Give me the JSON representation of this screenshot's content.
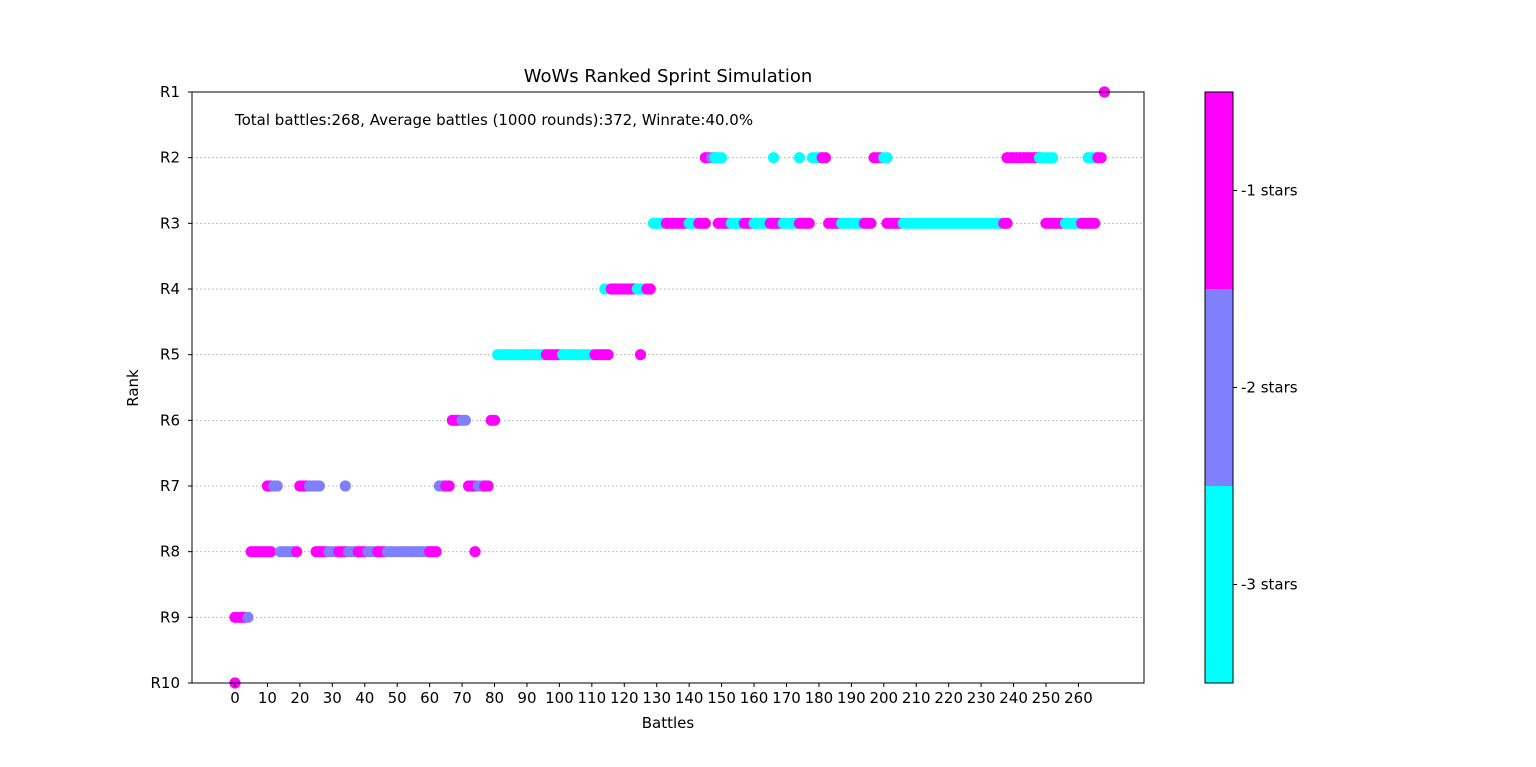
{
  "chart_data": {
    "type": "scatter",
    "title": "WoWs Ranked Sprint Simulation",
    "annotation": "Total battles:268, Average battles (1000 rounds):372, Winrate:40.0%",
    "xlabel": "Battles",
    "ylabel": "Rank",
    "xlim": [
      -13,
      280
    ],
    "x_ticks": [
      0,
      10,
      20,
      30,
      40,
      50,
      60,
      70,
      80,
      90,
      100,
      110,
      120,
      130,
      140,
      150,
      160,
      170,
      180,
      190,
      200,
      210,
      220,
      230,
      240,
      250,
      260
    ],
    "y_ticks": [
      {
        "label": "R1",
        "value": 1,
        "color": "#ff0000"
      },
      {
        "label": "R2",
        "value": 2,
        "color": "#000000"
      },
      {
        "label": "R3",
        "value": 3,
        "color": "#ff0000"
      },
      {
        "label": "R4",
        "value": 4,
        "color": "#000000"
      },
      {
        "label": "R5",
        "value": 5,
        "color": "#ff0000"
      },
      {
        "label": "R6",
        "value": 6,
        "color": "#000000"
      },
      {
        "label": "R7",
        "value": 7,
        "color": "#000000"
      },
      {
        "label": "R8",
        "value": 8,
        "color": "#ff0000"
      },
      {
        "label": "R9",
        "value": 9,
        "color": "#ff0000"
      },
      {
        "label": "R10",
        "value": 10,
        "color": "#ff0000"
      }
    ],
    "ylim": [
      10,
      1
    ],
    "grid": "horizontal dotted",
    "colorbar": {
      "categories": [
        {
          "label": "-3 stars",
          "color": "#00ffff"
        },
        {
          "label": "-2 stars",
          "color": "#8080ff"
        },
        {
          "label": "-1 stars",
          "color": "#ff00ff"
        }
      ]
    },
    "segments": [
      {
        "rank": 10,
        "x": [
          0,
          0
        ],
        "mix": "m"
      },
      {
        "rank": 9,
        "x": [
          0,
          4
        ],
        "mix": "mmp"
      },
      {
        "rank": 8,
        "x": [
          5,
          11
        ],
        "mix": "mm"
      },
      {
        "rank": 8,
        "x": [
          14,
          19
        ],
        "mix": "pppm"
      },
      {
        "rank": 8,
        "x": [
          25,
          34
        ],
        "mix": "mpm"
      },
      {
        "rank": 8,
        "x": [
          35,
          46
        ],
        "mix": "pmpm"
      },
      {
        "rank": 8,
        "x": [
          47,
          60
        ],
        "mix": "pp"
      },
      {
        "rank": 8,
        "x": [
          60,
          62
        ],
        "mix": "m"
      },
      {
        "rank": 8,
        "x": [
          74,
          74
        ],
        "mix": "m"
      },
      {
        "rank": 7,
        "x": [
          10,
          13
        ],
        "mix": "mp"
      },
      {
        "rank": 7,
        "x": [
          20,
          26
        ],
        "mix": "mpp"
      },
      {
        "rank": 7,
        "x": [
          34,
          34
        ],
        "mix": "p"
      },
      {
        "rank": 7,
        "x": [
          63,
          66
        ],
        "mix": "pm"
      },
      {
        "rank": 7,
        "x": [
          72,
          78
        ],
        "mix": "mpm"
      },
      {
        "rank": 6,
        "x": [
          67,
          71
        ],
        "mix": "mp"
      },
      {
        "rank": 6,
        "x": [
          79,
          80
        ],
        "mix": "m"
      },
      {
        "rank": 5,
        "x": [
          81,
          90
        ],
        "mix": "cc"
      },
      {
        "rank": 5,
        "x": [
          90,
          100
        ],
        "mix": "cm"
      },
      {
        "rank": 5,
        "x": [
          101,
          115
        ],
        "mix": "ccm"
      },
      {
        "rank": 5,
        "x": [
          125,
          125
        ],
        "mix": "m"
      },
      {
        "rank": 4,
        "x": [
          114,
          114
        ],
        "mix": "c"
      },
      {
        "rank": 4,
        "x": [
          116,
          124
        ],
        "mix": "mm"
      },
      {
        "rank": 4,
        "x": [
          124,
          128
        ],
        "mix": "cm"
      },
      {
        "rank": 3,
        "x": [
          129,
          133
        ],
        "mix": "cc"
      },
      {
        "rank": 3,
        "x": [
          133,
          145
        ],
        "mix": "mmcm"
      },
      {
        "rank": 3,
        "x": [
          149,
          160
        ],
        "mix": "mcm"
      },
      {
        "rank": 3,
        "x": [
          160,
          177
        ],
        "mix": "cmcm"
      },
      {
        "rank": 3,
        "x": [
          183,
          196
        ],
        "mix": "mccm"
      },
      {
        "rank": 3,
        "x": [
          201,
          210
        ],
        "mix": "mc"
      },
      {
        "rank": 3,
        "x": [
          210,
          237
        ],
        "mix": "cc"
      },
      {
        "rank": 3,
        "x": [
          237,
          238
        ],
        "mix": "m"
      },
      {
        "rank": 3,
        "x": [
          250,
          265
        ],
        "mix": "mcm"
      },
      {
        "rank": 2,
        "x": [
          145,
          148
        ],
        "mix": "mp"
      },
      {
        "rank": 2,
        "x": [
          148,
          150
        ],
        "mix": "c"
      },
      {
        "rank": 2,
        "x": [
          166,
          166
        ],
        "mix": "c"
      },
      {
        "rank": 2,
        "x": [
          174,
          174
        ],
        "mix": "c"
      },
      {
        "rank": 2,
        "x": [
          178,
          182
        ],
        "mix": "cm"
      },
      {
        "rank": 2,
        "x": [
          197,
          201
        ],
        "mix": "mc"
      },
      {
        "rank": 2,
        "x": [
          238,
          248
        ],
        "mix": "mmm"
      },
      {
        "rank": 2,
        "x": [
          248,
          252
        ],
        "mix": "c"
      },
      {
        "rank": 2,
        "x": [
          263,
          267
        ],
        "mix": "cm"
      },
      {
        "rank": 1,
        "x": [
          268,
          268
        ],
        "mix": "m"
      }
    ]
  }
}
